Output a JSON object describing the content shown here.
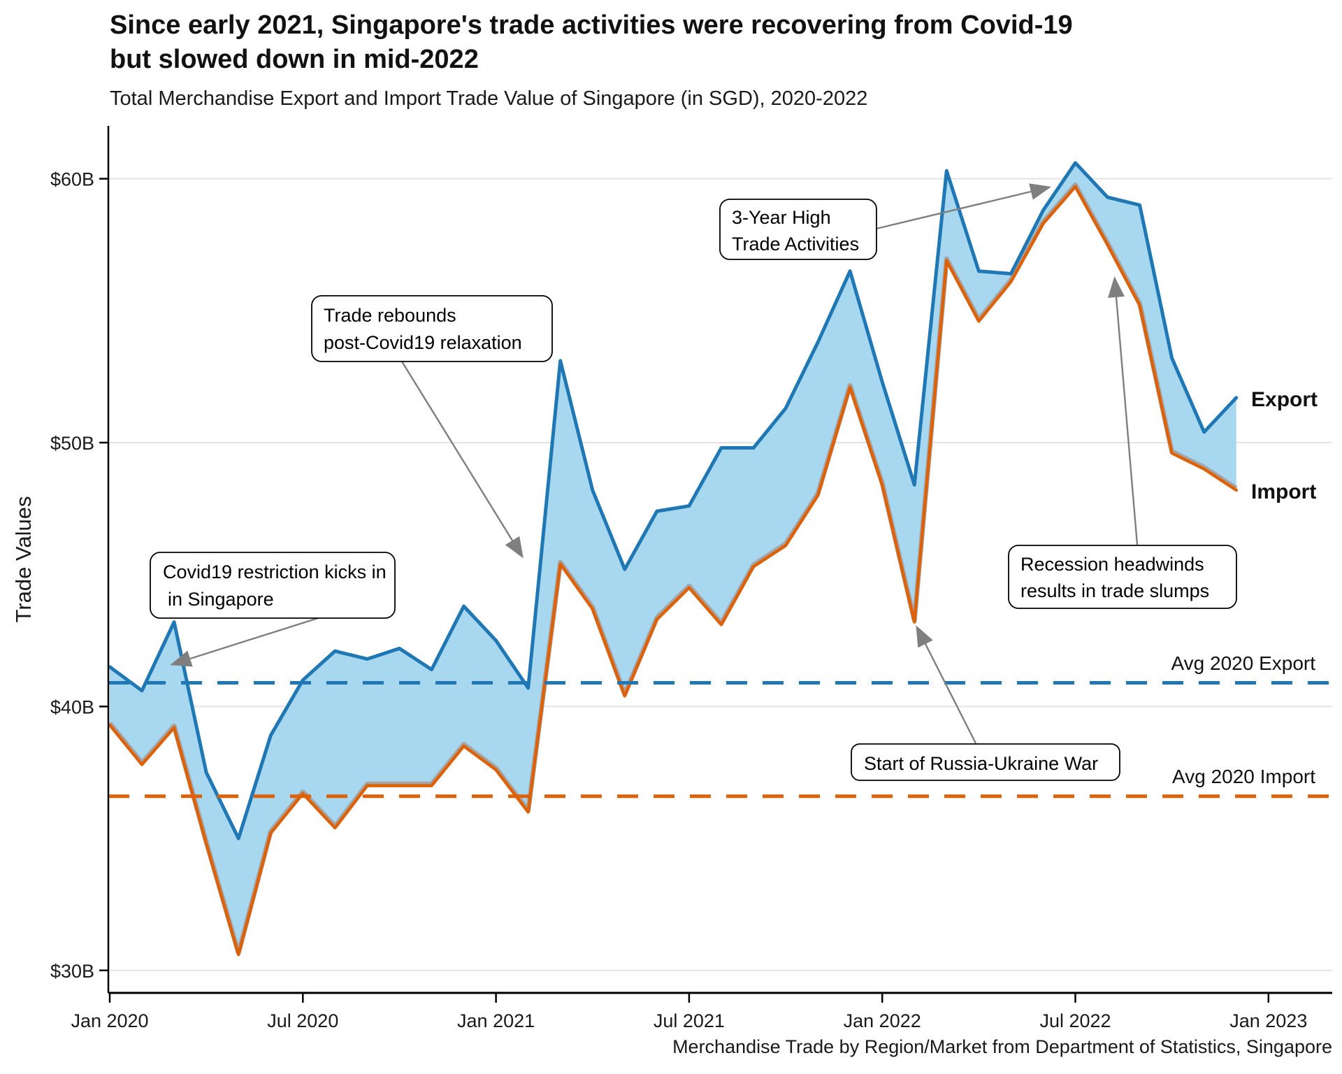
{
  "title": {
    "line1": "Since early 2021, Singapore's trade activities were recovering from Covid-19",
    "line2": "but slowed down in mid-2022"
  },
  "subtitle": "Total Merchandise Export and Import Trade Value of Singapore (in SGD), 2020-2022",
  "caption": "Merchandise Trade by Region/Market from Department of Statistics, Singapore",
  "y_axis_title": "Trade Values",
  "series_labels": {
    "export": "Export",
    "import": "Import"
  },
  "avg_labels": {
    "export": "Avg 2020 Export",
    "import": "Avg 2020 Import"
  },
  "annotations": [
    {
      "id": "covid",
      "lines": [
        "Covid19 restriction kicks in",
        "in Singapore"
      ]
    },
    {
      "id": "rebound",
      "lines": [
        "Trade rebounds",
        "post-Covid19 relaxation"
      ]
    },
    {
      "id": "high",
      "lines": [
        "3-Year High",
        "Trade Activities"
      ]
    },
    {
      "id": "war",
      "lines": [
        "Start of Russia-Ukraine War"
      ]
    },
    {
      "id": "recession",
      "lines": [
        "Recession headwinds",
        "results in trade slumps"
      ]
    }
  ],
  "colors": {
    "export_blue": "#1F78B4",
    "import_orange": "#DD6108",
    "area_fill": "#A8D7F0",
    "ribbon_edge_gray": "#A5A5A5",
    "gridline": "#E3E3E3",
    "annotation_gray": "#7F7F7F",
    "axis_black": "#000000"
  },
  "chart_data": {
    "type": "area",
    "title": "Total Merchandise Export and Import Trade Value of Singapore (in SGD), 2020-2022",
    "xlabel": "",
    "ylabel": "Trade Values",
    "ylim": [
      29.2,
      62
    ],
    "grid": "horizontal-only",
    "months": [
      "Jan 2020",
      "Feb 2020",
      "Mar 2020",
      "Apr 2020",
      "May 2020",
      "Jun 2020",
      "Jul 2020",
      "Aug 2020",
      "Sep 2020",
      "Oct 2020",
      "Nov 2020",
      "Dec 2020",
      "Jan 2021",
      "Feb 2021",
      "Mar 2021",
      "Apr 2021",
      "May 2021",
      "Jun 2021",
      "Jul 2021",
      "Aug 2021",
      "Sep 2021",
      "Oct 2021",
      "Nov 2021",
      "Dec 2021",
      "Jan 2022",
      "Feb 2022",
      "Mar 2022",
      "Apr 2022",
      "May 2022",
      "Jun 2022",
      "Jul 2022",
      "Aug 2022",
      "Sep 2022",
      "Oct 2022",
      "Nov 2022",
      "Dec 2022"
    ],
    "series": [
      {
        "name": "Export",
        "unit": "SGD billions",
        "values": [
          41.5,
          40.6,
          43.2,
          37.5,
          35.0,
          38.9,
          41.0,
          42.1,
          41.8,
          42.2,
          41.4,
          43.8,
          42.5,
          40.7,
          53.1,
          48.2,
          45.2,
          47.4,
          47.6,
          49.8,
          49.8,
          51.3,
          53.8,
          56.5,
          52.3,
          48.4,
          60.3,
          56.5,
          56.4,
          58.8,
          60.6,
          59.3,
          59.0,
          53.2,
          50.4,
          51.7
        ]
      },
      {
        "name": "Import",
        "unit": "SGD billions",
        "values": [
          39.3,
          37.8,
          39.2,
          34.8,
          30.6,
          35.2,
          36.7,
          35.4,
          37.0,
          37.0,
          37.0,
          38.5,
          37.6,
          36.0,
          45.4,
          43.7,
          40.4,
          43.3,
          44.5,
          43.1,
          45.3,
          46.1,
          48.0,
          52.1,
          48.4,
          43.2,
          56.9,
          54.6,
          56.1,
          58.3,
          59.7,
          57.5,
          55.2,
          49.6,
          49.0,
          48.2
        ]
      }
    ],
    "reference_lines": [
      {
        "name": "Avg 2020 Export",
        "value": 40.9,
        "style": "dashed",
        "color": "#1F78B4"
      },
      {
        "name": "Avg 2020 Import",
        "value": 36.6,
        "style": "dashed",
        "color": "#DD6108"
      }
    ],
    "y_ticks": [
      30,
      40,
      50,
      60
    ],
    "y_tick_labels": [
      "$30B",
      "$40B",
      "$50B",
      "$60B"
    ],
    "x_tick_months": [
      0,
      6,
      12,
      18,
      24,
      30,
      36
    ],
    "x_tick_labels": [
      "Jan 2020",
      "Jul 2020",
      "Jan 2021",
      "Jul 2021",
      "Jan 2022",
      "Jul 2022",
      "Jan 2023"
    ]
  }
}
